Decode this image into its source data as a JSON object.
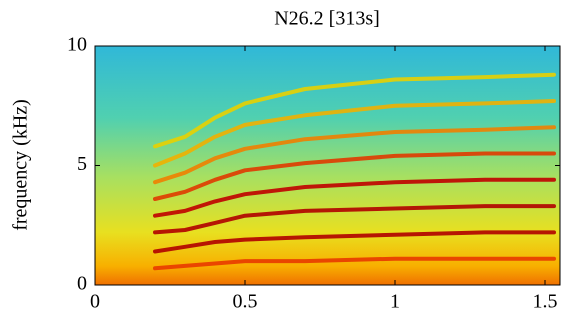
{
  "chart_data": {
    "type": "spectrogram",
    "title": "N26.2 [313s]",
    "y_label": "frequency (kHz)",
    "x": [
      0.2,
      0.3,
      0.4,
      0.5,
      0.7,
      1.0,
      1.3,
      1.53
    ],
    "series": [
      {
        "color": "#e83a00",
        "values": [
          0.7,
          0.8,
          0.9,
          1.0,
          1.0,
          1.1,
          1.1,
          1.1
        ]
      },
      {
        "color": "#b00000",
        "values": [
          1.4,
          1.6,
          1.8,
          1.9,
          2.0,
          2.1,
          2.2,
          2.2
        ]
      },
      {
        "color": "#b00000",
        "values": [
          2.2,
          2.3,
          2.6,
          2.9,
          3.1,
          3.2,
          3.3,
          3.3
        ]
      },
      {
        "color": "#c00000",
        "values": [
          2.9,
          3.1,
          3.5,
          3.8,
          4.1,
          4.3,
          4.4,
          4.4
        ]
      },
      {
        "color": "#e03a00",
        "values": [
          3.6,
          3.9,
          4.4,
          4.8,
          5.1,
          5.4,
          5.5,
          5.5
        ]
      },
      {
        "color": "#f08000",
        "values": [
          4.3,
          4.7,
          5.3,
          5.7,
          6.1,
          6.4,
          6.5,
          6.6
        ]
      },
      {
        "color": "#f0b000",
        "values": [
          5.0,
          5.5,
          6.2,
          6.7,
          7.1,
          7.5,
          7.6,
          7.7
        ]
      },
      {
        "color": "#e8d000",
        "values": [
          5.8,
          6.2,
          7.0,
          7.6,
          8.2,
          8.6,
          8.7,
          8.8
        ]
      }
    ],
    "xlim": [
      0,
      1.55
    ],
    "ylim": [
      0,
      10
    ],
    "xticks": [
      0,
      0.5,
      1,
      1.5
    ],
    "yticks": [
      0,
      5,
      10
    ]
  }
}
